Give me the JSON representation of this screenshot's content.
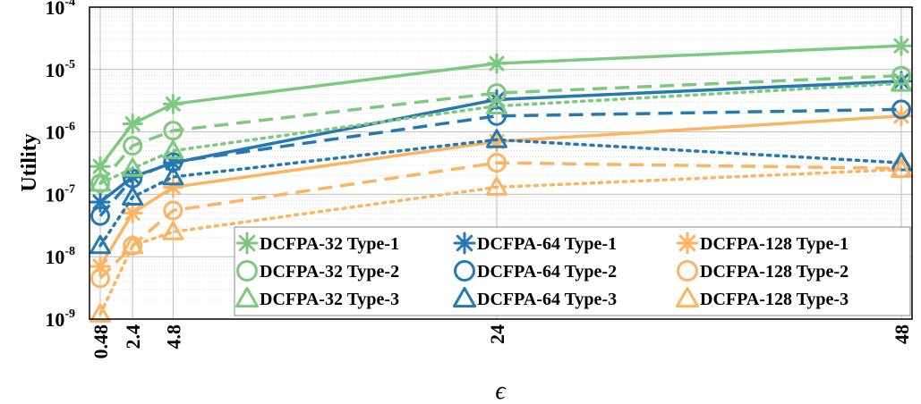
{
  "chart_data": {
    "type": "line",
    "xlabel": "ϵ",
    "ylabel": "Utility",
    "yscale": "log",
    "ylim": [
      1e-09,
      0.0001
    ],
    "xlim": [
      0.48,
      48
    ],
    "x": [
      0.48,
      2.4,
      4.8,
      24,
      48
    ],
    "x_tick_labels": [
      "0.48",
      "2.4",
      "4.8",
      "24",
      "48"
    ],
    "y_ticks": [
      {
        "base": "10",
        "exp": "-9"
      },
      {
        "base": "10",
        "exp": "-8"
      },
      {
        "base": "10",
        "exp": "-7"
      },
      {
        "base": "10",
        "exp": "-6"
      },
      {
        "base": "10",
        "exp": "-5"
      },
      {
        "base": "10",
        "exp": "-4"
      }
    ],
    "grid": true,
    "legend_position": "bottom-right",
    "colors": {
      "green": "#7fc97f",
      "blue": "#2678b2",
      "orange": "#fdb462"
    },
    "series": [
      {
        "name": "DCFPA-32 Type-1",
        "color": "#7fc97f",
        "dash": "solid",
        "marker": "asterisk",
        "values": [
          2.8e-07,
          1.35e-06,
          2.8e-06,
          1.25e-05,
          2.4e-05
        ]
      },
      {
        "name": "DCFPA-64 Type-1",
        "color": "#2678b2",
        "dash": "solid",
        "marker": "asterisk",
        "values": [
          7.5e-08,
          1.9e-07,
          3.2e-07,
          3.3e-06,
          6.5e-06
        ]
      },
      {
        "name": "DCFPA-128 Type-1",
        "color": "#fdb462",
        "dash": "solid",
        "marker": "asterisk",
        "values": [
          7e-09,
          5e-08,
          1.3e-07,
          7e-07,
          1.8e-06
        ]
      },
      {
        "name": "DCFPA-32 Type-2",
        "color": "#7fc97f",
        "dash": "dashed",
        "marker": "circle",
        "values": [
          1.5e-07,
          6e-07,
          1.05e-06,
          4.2e-06,
          8e-06
        ]
      },
      {
        "name": "DCFPA-64 Type-2",
        "color": "#2678b2",
        "dash": "dashed",
        "marker": "circle",
        "values": [
          4.5e-08,
          1.8e-07,
          3.3e-07,
          1.8e-06,
          2.3e-06
        ]
      },
      {
        "name": "DCFPA-128 Type-2",
        "color": "#fdb462",
        "dash": "dashed",
        "marker": "circle",
        "values": [
          4.5e-09,
          1.5e-08,
          5.5e-08,
          3.2e-07,
          2.6e-07
        ]
      },
      {
        "name": "DCFPA-32 Type-3",
        "color": "#7fc97f",
        "dash": "dotted",
        "marker": "triangle",
        "values": [
          1.5e-07,
          2.6e-07,
          5e-07,
          2.6e-06,
          6e-06
        ]
      },
      {
        "name": "DCFPA-64 Type-3",
        "color": "#2678b2",
        "dash": "dotted",
        "marker": "triangle",
        "values": [
          1.5e-08,
          9e-08,
          1.9e-07,
          7.5e-07,
          3.2e-07
        ]
      },
      {
        "name": "DCFPA-128 Type-3",
        "color": "#fdb462",
        "dash": "dotted",
        "marker": "triangle",
        "values": [
          1.2e-09,
          1.5e-08,
          2.5e-08,
          1.3e-07,
          2.5e-07
        ]
      }
    ]
  }
}
